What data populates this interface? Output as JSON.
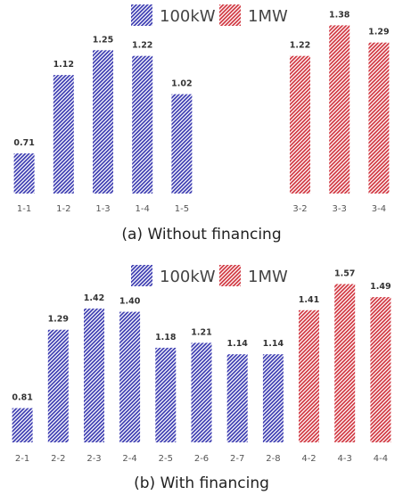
{
  "chart_data": [
    {
      "type": "bar",
      "caption": "(a) Without financing",
      "legend": [
        {
          "name": "100kW",
          "color": "#3a3ab0"
        },
        {
          "name": "1MW",
          "color": "#d0343e"
        }
      ],
      "categories": [
        "1-1",
        "1-2",
        "1-3",
        "1-4",
        "1-5",
        "",
        "",
        "3-2",
        "3-3",
        "3-4"
      ],
      "values": [
        0.71,
        1.12,
        1.25,
        1.22,
        1.02,
        null,
        null,
        1.22,
        1.38,
        1.29
      ],
      "value_labels": [
        "0.71",
        "1.12",
        "1.25",
        "1.22",
        "1.02",
        "",
        "",
        "1.22",
        "1.38",
        "1.29"
      ],
      "series_index": [
        0,
        0,
        0,
        0,
        0,
        null,
        null,
        1,
        1,
        1
      ],
      "ylim": [
        0.5,
        1.41
      ]
    },
    {
      "type": "bar",
      "caption": "(b) With financing",
      "legend": [
        {
          "name": "100kW",
          "color": "#3a3ab0"
        },
        {
          "name": "1MW",
          "color": "#d0343e"
        }
      ],
      "categories": [
        "2-1",
        "2-2",
        "2-3",
        "2-4",
        "2-5",
        "2-6",
        "2-7",
        "2-8",
        "4-2",
        "4-3",
        "4-4"
      ],
      "values": [
        0.81,
        1.29,
        1.42,
        1.4,
        1.18,
        1.21,
        1.14,
        1.14,
        1.41,
        1.57,
        1.49
      ],
      "value_labels": [
        "0.81",
        "1.29",
        "1.42",
        "1.40",
        "1.18",
        "1.21",
        "1.14",
        "1.14",
        "1.41",
        "1.57",
        "1.49"
      ],
      "series_index": [
        0,
        0,
        0,
        0,
        0,
        0,
        0,
        0,
        1,
        1,
        1
      ],
      "ylim": [
        0.6,
        1.6
      ]
    }
  ]
}
